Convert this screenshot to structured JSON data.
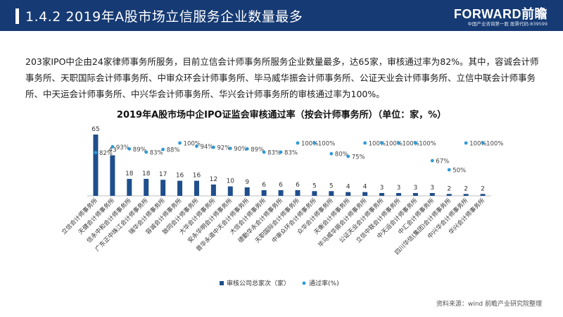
{
  "header": {
    "title": "1.4.2 2019年A股市场立信服务企业数量最多",
    "logo_brand": "FORWARD前瞻",
    "logo_slogan": "中国产业咨询第一股 股票代码:839599"
  },
  "intro": {
    "text": "203家IPO中企由24家律师事务所服务，目前立信会计师事务所服务企业数量最多，达65家，审核通过率为82%。其中，容诚会计师事务所、天职国际会计师事务所、中审众环会计师事务所、毕马威华振会计师事务所、公证天业会计师事务所、立信中联会计师事务所、中天运会计师事务所、中兴华会计师事务所、华兴会计师事务所的审核通过率为100%。"
  },
  "source": "资料来源：wind 前瞻产业研究院整理",
  "chart_data": {
    "type": "bar",
    "title": "2019年A股市场中企IPO证监会审核通过率（按会计师事务所）（单位：家，%）",
    "categories": [
      "立信会计师事务所",
      "天健会计师事务所",
      "信永中和会计师事务所",
      "广东正中珠江会计师事务所",
      "瑞华会计师事务所",
      "容诚会计师事务所",
      "致同会计师事务所",
      "大华会计师事务所",
      "安永华明会计师事务所",
      "普华永道中天会计师事务所",
      "大信会计师事务所",
      "德勤华永会计师事务所",
      "天职国际会计师事务所",
      "中审众环会计师事务所",
      "众华会计师事务所",
      "天衡会计师事务所",
      "毕马威华振会计师事务所",
      "公证天业会计师事务所",
      "立信中联会计师事务所",
      "中天运会计师事务所",
      "中汇会计师事务所",
      "四川华信(集团)会计师事务所",
      "中兴华会计师事务所",
      "华兴会计师事务所"
    ],
    "series": [
      {
        "name": "审核公司总家次（家）",
        "type": "bar",
        "color": "#1f4e8c",
        "values": [
          65,
          43,
          18,
          18,
          17,
          16,
          16,
          12,
          10,
          9,
          6,
          6,
          6,
          5,
          5,
          4,
          4,
          3,
          3,
          3,
          3,
          2,
          2,
          2
        ],
        "labels": [
          "65",
          "43",
          "18",
          "18",
          "17",
          "16",
          "16",
          "12",
          "10",
          "9",
          "6",
          "6",
          "6",
          "5",
          "5",
          "4",
          "4",
          "3",
          "3",
          "3",
          "3",
          "2",
          "2",
          "2"
        ]
      },
      {
        "name": "通过率(%)",
        "type": "scatter",
        "color": "#2e9ad6",
        "values": [
          82,
          93,
          89,
          83,
          88,
          100,
          94,
          92,
          90,
          89,
          83,
          83,
          100,
          100,
          80,
          75,
          100,
          100,
          100,
          100,
          67,
          50,
          100,
          100
        ],
        "labels": [
          "82%",
          "93%",
          "89%",
          "83%",
          "88%",
          "100%",
          "94%",
          "92%",
          "90%",
          "89%",
          "83%",
          "83%",
          "100%",
          "100%",
          "80%",
          "75%",
          "100%",
          "100%",
          "100%",
          "100%",
          "67%",
          "50%",
          "100%",
          "100%"
        ]
      }
    ],
    "legend_position": "bottom-left",
    "grid": false
  }
}
